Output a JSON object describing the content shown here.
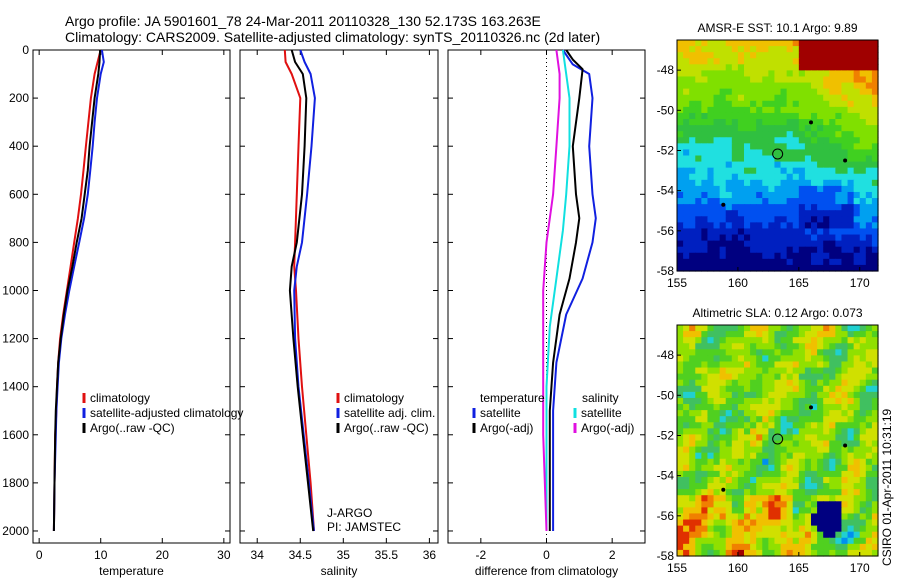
{
  "header": {
    "line1": "Argo profile: JA 5901601_78 24-Mar-2011 20110328_130 52.173S 163.263E",
    "line2": "Climatology: CARS2009. Satellite-adjusted climatology: synTS_20110326.nc (2d later)"
  },
  "colors": {
    "climatology": "#e01010",
    "satellite": "#1020e0",
    "argo": "#000000",
    "sal_satellite": "#10e0e0",
    "sal_argo": "#e010e0"
  },
  "chart_data": [
    {
      "type": "line",
      "id": "temperature",
      "xlabel": "temperature",
      "ylabel": "",
      "xlim": [
        -1,
        31
      ],
      "ylim": [
        2050,
        0
      ],
      "xticks": [
        0,
        10,
        20,
        30
      ],
      "yticks": [
        0,
        200,
        400,
        600,
        800,
        1000,
        1200,
        1400,
        1600,
        1800,
        2000
      ],
      "legend": [
        "climatology",
        "satellite-adjusted climatology",
        "Argo(..raw -QC)"
      ],
      "series": [
        {
          "name": "climatology",
          "color": "#e01010",
          "points": [
            [
              10.0,
              0
            ],
            [
              9.5,
              50
            ],
            [
              9.0,
              100
            ],
            [
              8.4,
              200
            ],
            [
              8.0,
              300
            ],
            [
              7.6,
              400
            ],
            [
              7.2,
              500
            ],
            [
              6.8,
              600
            ],
            [
              6.3,
              700
            ],
            [
              5.7,
              800
            ],
            [
              5.1,
              900
            ],
            [
              4.5,
              1000
            ],
            [
              3.9,
              1100
            ],
            [
              3.4,
              1200
            ],
            [
              3.1,
              1300
            ],
            [
              2.9,
              1400
            ],
            [
              2.8,
              1500
            ],
            [
              2.6,
              1600
            ],
            [
              2.5,
              1800
            ],
            [
              2.4,
              2000
            ]
          ]
        },
        {
          "name": "satellite-adjusted climatology",
          "color": "#1020e0",
          "points": [
            [
              10.2,
              0
            ],
            [
              10.5,
              50
            ],
            [
              10.0,
              100
            ],
            [
              9.4,
              200
            ],
            [
              9.0,
              300
            ],
            [
              8.7,
              400
            ],
            [
              8.3,
              500
            ],
            [
              7.9,
              600
            ],
            [
              7.3,
              700
            ],
            [
              6.5,
              800
            ],
            [
              5.7,
              900
            ],
            [
              4.9,
              1000
            ],
            [
              4.2,
              1100
            ],
            [
              3.6,
              1200
            ],
            [
              3.2,
              1300
            ],
            [
              3.0,
              1400
            ],
            [
              2.8,
              1500
            ],
            [
              2.7,
              1600
            ],
            [
              2.5,
              1800
            ],
            [
              2.4,
              2000
            ]
          ]
        },
        {
          "name": "Argo(..raw -QC)",
          "color": "#000000",
          "points": [
            [
              9.9,
              0
            ],
            [
              9.8,
              50
            ],
            [
              9.6,
              100
            ],
            [
              9.0,
              200
            ],
            [
              8.6,
              300
            ],
            [
              8.2,
              400
            ],
            [
              7.9,
              500
            ],
            [
              7.4,
              600
            ],
            [
              6.9,
              700
            ],
            [
              6.1,
              800
            ],
            [
              5.4,
              900
            ],
            [
              4.6,
              1000
            ],
            [
              4.0,
              1100
            ],
            [
              3.5,
              1200
            ],
            [
              3.1,
              1300
            ],
            [
              2.9,
              1400
            ],
            [
              2.7,
              1500
            ],
            [
              2.6,
              1600
            ],
            [
              2.5,
              1800
            ],
            [
              2.4,
              2000
            ]
          ]
        }
      ]
    },
    {
      "type": "line",
      "id": "salinity",
      "xlabel": "salinity",
      "ylabel": "",
      "xlim": [
        33.8,
        36.1
      ],
      "ylim": [
        2050,
        0
      ],
      "xticks": [
        34,
        34.5,
        35,
        35.5,
        36
      ],
      "yticks": [],
      "legend": [
        "climatology",
        "satellite adj. clim.",
        "Argo(..raw -QC)"
      ],
      "annotation": [
        "J-ARGO",
        "PI: JAMSTEC"
      ],
      "series": [
        {
          "name": "climatology",
          "color": "#e01010",
          "points": [
            [
              34.32,
              0
            ],
            [
              34.33,
              50
            ],
            [
              34.4,
              100
            ],
            [
              34.5,
              200
            ],
            [
              34.48,
              400
            ],
            [
              34.46,
              600
            ],
            [
              34.44,
              800
            ],
            [
              34.43,
              900
            ],
            [
              34.45,
              1000
            ],
            [
              34.48,
              1200
            ],
            [
              34.52,
              1400
            ],
            [
              34.57,
              1600
            ],
            [
              34.62,
              1800
            ],
            [
              34.66,
              2000
            ]
          ]
        },
        {
          "name": "satellite adj. clim.",
          "color": "#1020e0",
          "points": [
            [
              34.5,
              0
            ],
            [
              34.55,
              50
            ],
            [
              34.62,
              100
            ],
            [
              34.67,
              200
            ],
            [
              34.63,
              400
            ],
            [
              34.58,
              600
            ],
            [
              34.52,
              800
            ],
            [
              34.46,
              900
            ],
            [
              34.43,
              1000
            ],
            [
              34.44,
              1200
            ],
            [
              34.48,
              1400
            ],
            [
              34.54,
              1600
            ],
            [
              34.6,
              1800
            ],
            [
              34.66,
              2000
            ]
          ]
        },
        {
          "name": "Argo(..raw -QC)",
          "color": "#000000",
          "points": [
            [
              34.4,
              0
            ],
            [
              34.44,
              50
            ],
            [
              34.53,
              100
            ],
            [
              34.57,
              200
            ],
            [
              34.55,
              400
            ],
            [
              34.52,
              600
            ],
            [
              34.46,
              800
            ],
            [
              34.4,
              900
            ],
            [
              34.38,
              1000
            ],
            [
              34.42,
              1200
            ],
            [
              34.47,
              1400
            ],
            [
              34.53,
              1600
            ],
            [
              34.59,
              1800
            ],
            [
              34.65,
              2000
            ]
          ]
        }
      ]
    },
    {
      "type": "line",
      "id": "difference",
      "xlabel": "difference from climatology",
      "ylabel": "",
      "xlim": [
        -3,
        3
      ],
      "ylim": [
        2050,
        0
      ],
      "xticks": [
        -2,
        0,
        2
      ],
      "yticks": [],
      "legend_left": [
        "temperature",
        "satellite",
        "Argo(-adj)"
      ],
      "legend_right": [
        "salinity",
        "satellite",
        "Argo(-adj)"
      ],
      "series": [
        {
          "name": "temperature satellite",
          "color": "#1020e0",
          "points": [
            [
              0.5,
              0
            ],
            [
              0.8,
              60
            ],
            [
              1.3,
              100
            ],
            [
              1.4,
              200
            ],
            [
              1.3,
              400
            ],
            [
              1.4,
              600
            ],
            [
              1.5,
              700
            ],
            [
              1.4,
              800
            ],
            [
              1.1,
              950
            ],
            [
              0.6,
              1100
            ],
            [
              0.3,
              1300
            ],
            [
              0.2,
              1500
            ],
            [
              0.2,
              2000
            ]
          ]
        },
        {
          "name": "temperature Argo(-adj)",
          "color": "#000000",
          "points": [
            [
              0.6,
              0
            ],
            [
              0.8,
              40
            ],
            [
              1.1,
              80
            ],
            [
              1.0,
              200
            ],
            [
              0.8,
              400
            ],
            [
              0.9,
              600
            ],
            [
              1.0,
              700
            ],
            [
              0.9,
              800
            ],
            [
              0.7,
              950
            ],
            [
              0.4,
              1100
            ],
            [
              0.2,
              1300
            ],
            [
              0.1,
              1500
            ],
            [
              0.1,
              2000
            ]
          ]
        },
        {
          "name": "salinity satellite",
          "color": "#10e0e0",
          "points": [
            [
              0.5,
              0
            ],
            [
              0.6,
              100
            ],
            [
              0.7,
              200
            ],
            [
              0.7,
              400
            ],
            [
              0.6,
              600
            ],
            [
              0.5,
              750
            ],
            [
              0.3,
              950
            ],
            [
              0.1,
              1150
            ],
            [
              0.0,
              1400
            ],
            [
              0.0,
              2000
            ]
          ]
        },
        {
          "name": "salinity Argo(-adj)",
          "color": "#e010e0",
          "points": [
            [
              0.3,
              0
            ],
            [
              0.4,
              100
            ],
            [
              0.4,
              200
            ],
            [
              0.3,
              400
            ],
            [
              0.2,
              600
            ],
            [
              0.0,
              800
            ],
            [
              -0.1,
              1000
            ],
            [
              -0.1,
              1300
            ],
            [
              -0.1,
              1600
            ],
            [
              0.0,
              2000
            ]
          ]
        }
      ]
    },
    {
      "type": "heatmap",
      "id": "sst_map",
      "title": "AMSR-E SST: 10.1 Argo: 9.89",
      "xlim": [
        155,
        171.5
      ],
      "ylim": [
        -58,
        -46.5
      ],
      "xticks": [
        155,
        160,
        165,
        170
      ],
      "yticks": [
        -48,
        -50,
        -52,
        -54,
        -56,
        -58
      ],
      "marker": {
        "lon": 163.263,
        "lat": -52.173
      }
    },
    {
      "type": "heatmap",
      "id": "sla_map",
      "title": "Altimetric SLA: 0.12 Argo: 0.073",
      "xlim": [
        155,
        171.5
      ],
      "ylim": [
        -58,
        -46.5
      ],
      "xticks": [
        155,
        160,
        165,
        170
      ],
      "yticks": [
        -48,
        -50,
        -52,
        -54,
        -56,
        -58
      ],
      "marker": {
        "lon": 163.263,
        "lat": -52.173
      }
    }
  ],
  "footer": {
    "credit": "CSIRO 01-Apr-2011 10:31:19"
  }
}
